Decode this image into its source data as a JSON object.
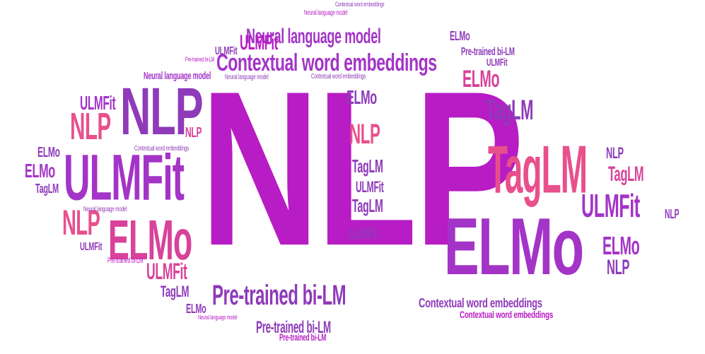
{
  "colors": {
    "magenta": "#b81cc4",
    "purple": "#a334c7",
    "violet": "#8e3ab9",
    "pink": "#e8508c",
    "hotpink": "#d8429a",
    "lilac": "#b44cc2"
  },
  "words": {
    "nlp_main": "NLP",
    "elmo_main": "ELMo",
    "ulmfit_main": "ULMFit",
    "nlp_big": "NLP",
    "tagLM_big": "TagLM",
    "elmo_left": "ELMo",
    "ctx_top": "Contextual word embeddings",
    "nlm_top": "Neural language model",
    "ptbl_bottom": "Pre-trained bi-LM",
    "ptbl_bottom2": "Pre-trained bi-LM",
    "ulmfit_right": "ULMFit",
    "elmo_right": "ELMo",
    "nlp_right": "NLP",
    "ctx_bottom": "Contextual word embeddings",
    "ulmfit_top": "ULMFit",
    "ulmfit_top2": "ULMFit",
    "elmo_top": "ELMo",
    "elmo_mid": "ELMo",
    "nlp_mid": "NLP",
    "taglm_mid": "TagLM",
    "taglm_mid2": "TagLM",
    "ulmfit_mid": "ULMFit",
    "ulmfit_mid2": "ULMFit",
    "ulmfit_left": "ULMFit",
    "nlp_left": "NLP",
    "nlp_left2": "NLP",
    "elmo_left2": "ELMo",
    "elmo_left3": "ELMo",
    "taglm_left": "TagLM",
    "taglm_left2": "TagLM",
    "taglm_r2": "TagLM",
    "taglm_r3": "TagLM",
    "nlp_r2": "NLP",
    "nlp_r3": "NLP",
    "nlp_r4": "NLP",
    "elmo_r2": "ELMo",
    "elmo_r3": "ELMo",
    "ulmfit_r2": "ULMFit",
    "ulmfit_r3": "ULMFit",
    "ptbl_r1": "Pre-trained bi-LM",
    "ptbl_r2": "Pre-trained bi-LM",
    "ptbl_top": "Pre-trained bi-LM",
    "ptbl_mid": "Pre-trained bi-LM",
    "ctx_r1": "Contextual word embeddings",
    "ctx_s1": "Contextual word embeddings",
    "ctx_s2": "Contextual word embeddings",
    "ctx_s3": "Contextual word embeddings",
    "nlm_s1": "Neural language model",
    "nlm_s2": "Neural language model",
    "nlm_s3": "Neural language model",
    "nlm_s4": "Neural language model",
    "nlm_s5": "Neural language model"
  }
}
